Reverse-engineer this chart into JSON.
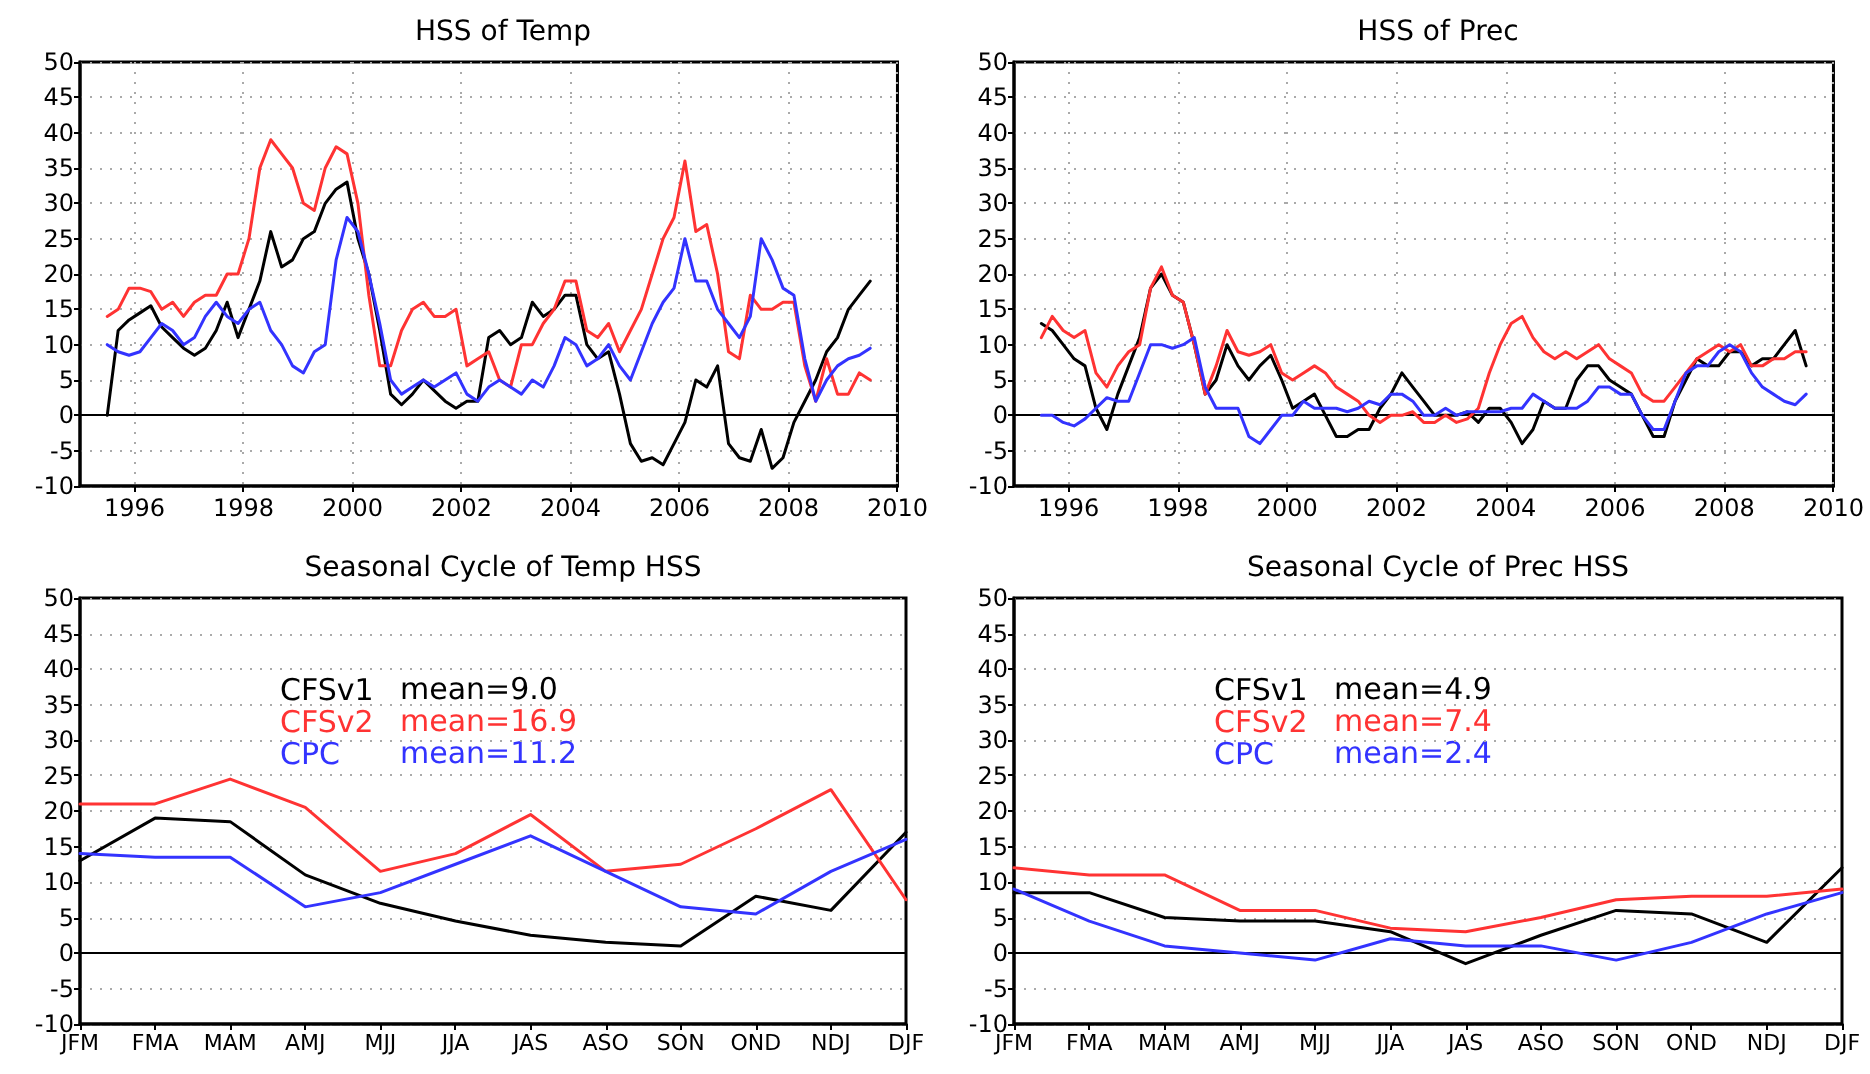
{
  "chart_data": [
    {
      "type": "line",
      "title": "HSS of Temp",
      "xlim": [
        1995,
        2010
      ],
      "xticks": [
        1996,
        1998,
        2000,
        2002,
        2004,
        2006,
        2008,
        2010
      ],
      "ylim": [
        -10,
        50
      ],
      "yticks": [
        -10,
        -5,
        0,
        5,
        10,
        15,
        20,
        25,
        30,
        35,
        40,
        45,
        50
      ],
      "grid": true,
      "ref_lines": [
        {
          "axis": "y",
          "value": 0,
          "color": "#000000",
          "line_style": "solid"
        }
      ],
      "x": [
        1995.5,
        1995.7,
        1995.9,
        1996.1,
        1996.3,
        1996.5,
        1996.7,
        1996.9,
        1997.1,
        1997.3,
        1997.5,
        1997.7,
        1997.9,
        1998.1,
        1998.3,
        1998.5,
        1998.7,
        1998.9,
        1999.1,
        1999.3,
        1999.5,
        1999.7,
        1999.9,
        2000.1,
        2000.3,
        2000.5,
        2000.7,
        2000.9,
        2001.1,
        2001.3,
        2001.5,
        2001.7,
        2001.9,
        2002.1,
        2002.3,
        2002.5,
        2002.7,
        2002.9,
        2003.1,
        2003.3,
        2003.5,
        2003.7,
        2003.9,
        2004.1,
        2004.3,
        2004.5,
        2004.7,
        2004.9,
        2005.1,
        2005.3,
        2005.5,
        2005.7,
        2005.9,
        2006.1,
        2006.3,
        2006.5,
        2006.7,
        2006.9,
        2007.1,
        2007.3,
        2007.5,
        2007.7,
        2007.9,
        2008.1,
        2008.3,
        2008.5,
        2008.7,
        2008.9,
        2009.1,
        2009.3,
        2009.5
      ],
      "series": [
        {
          "color": "#000000",
          "values": [
            0,
            12,
            13.5,
            14.5,
            15.5,
            12.5,
            11,
            9.5,
            8.5,
            9.5,
            12,
            16,
            11,
            15,
            19,
            26,
            21,
            22,
            25,
            26,
            30,
            32,
            33,
            25,
            20,
            12,
            3,
            1.5,
            3,
            5,
            3.5,
            2,
            1,
            2,
            2,
            11,
            12,
            10,
            11,
            16,
            14,
            15,
            17,
            17,
            10,
            8,
            9,
            3,
            -4,
            -6.5,
            -6,
            -7,
            -4,
            -1,
            5,
            4,
            7,
            -4,
            -6,
            -6.5,
            -2,
            -7.5,
            -6,
            -1,
            2,
            5,
            9,
            11,
            15,
            17,
            19
          ]
        },
        {
          "color": "#ff3333",
          "values": [
            14,
            15,
            18,
            18,
            17.5,
            15,
            16,
            14,
            16,
            17,
            17,
            20,
            20,
            25,
            35,
            39,
            37,
            35,
            30,
            29,
            35,
            38,
            37,
            30,
            17,
            7,
            7,
            12,
            15,
            16,
            14,
            14,
            15,
            7,
            8,
            9,
            5,
            4,
            10,
            10,
            13,
            15,
            19,
            19,
            12,
            11,
            13,
            9,
            12,
            15,
            20,
            25,
            28,
            36,
            26,
            27,
            20,
            9,
            8,
            17,
            15,
            15,
            16,
            16,
            7,
            2,
            8,
            3,
            3,
            6,
            5
          ]
        },
        {
          "color": "#3333ff",
          "values": [
            10,
            9,
            8.5,
            9,
            11,
            13,
            12,
            10,
            11,
            14,
            16,
            14,
            13,
            15,
            16,
            12,
            10,
            7,
            6,
            9,
            10,
            22,
            28,
            26,
            20,
            13,
            5,
            3,
            4,
            5,
            4,
            5,
            6,
            3,
            2,
            4,
            5,
            4,
            3,
            5,
            4,
            7,
            11,
            10,
            7,
            8,
            10,
            7,
            5,
            9,
            13,
            16,
            18,
            25,
            19,
            19,
            15,
            13,
            11,
            14,
            25,
            22,
            18,
            17,
            8,
            2,
            5,
            7,
            8,
            8.5,
            9.5
          ]
        }
      ]
    },
    {
      "type": "line",
      "title": "HSS of Prec",
      "xlim": [
        1995,
        2010
      ],
      "xticks": [
        1996,
        1998,
        2000,
        2002,
        2004,
        2006,
        2008,
        2010
      ],
      "ylim": [
        -10,
        50
      ],
      "yticks": [
        -10,
        -5,
        0,
        5,
        10,
        15,
        20,
        25,
        30,
        35,
        40,
        45,
        50
      ],
      "grid": true,
      "ref_lines": [
        {
          "axis": "y",
          "value": 0,
          "color": "#000000",
          "line_style": "solid"
        }
      ],
      "x": [
        1995.5,
        1995.7,
        1995.9,
        1996.1,
        1996.3,
        1996.5,
        1996.7,
        1996.9,
        1997.1,
        1997.3,
        1997.5,
        1997.7,
        1997.9,
        1998.1,
        1998.3,
        1998.5,
        1998.7,
        1998.9,
        1999.1,
        1999.3,
        1999.5,
        1999.7,
        1999.9,
        2000.1,
        2000.3,
        2000.5,
        2000.7,
        2000.9,
        2001.1,
        2001.3,
        2001.5,
        2001.7,
        2001.9,
        2002.1,
        2002.3,
        2002.5,
        2002.7,
        2002.9,
        2003.1,
        2003.3,
        2003.5,
        2003.7,
        2003.9,
        2004.1,
        2004.3,
        2004.5,
        2004.7,
        2004.9,
        2005.1,
        2005.3,
        2005.5,
        2005.7,
        2005.9,
        2006.1,
        2006.3,
        2006.5,
        2006.7,
        2006.9,
        2007.1,
        2007.3,
        2007.5,
        2007.7,
        2007.9,
        2008.1,
        2008.3,
        2008.5,
        2008.7,
        2008.9,
        2009.1,
        2009.3,
        2009.5
      ],
      "series": [
        {
          "color": "#000000",
          "values": [
            13,
            12,
            10,
            8,
            7,
            1,
            -2,
            3,
            7,
            11,
            18,
            20,
            17,
            16,
            10,
            3,
            5,
            10,
            7,
            5,
            7,
            8.5,
            5,
            1,
            2,
            3,
            0,
            -3,
            -3,
            -2,
            -2,
            1,
            3,
            6,
            4,
            2,
            0,
            0,
            0,
            0.5,
            -1,
            1,
            1,
            -1,
            -4,
            -2,
            2,
            1,
            1,
            5,
            7,
            7,
            5,
            4,
            3,
            0,
            -3,
            -3,
            2,
            5,
            8,
            7,
            7,
            9,
            9,
            7,
            8,
            8,
            10,
            12,
            7
          ]
        },
        {
          "color": "#ff3333",
          "values": [
            11,
            14,
            12,
            11,
            12,
            6,
            4,
            7,
            9,
            10,
            18,
            21,
            17,
            16,
            10,
            3,
            7,
            12,
            9,
            8.5,
            9,
            10,
            6,
            5,
            6,
            7,
            6,
            4,
            3,
            2,
            0,
            -1,
            0,
            0,
            0.5,
            -1,
            -1,
            0,
            -1,
            -0.5,
            1,
            6,
            10,
            13,
            14,
            11,
            9,
            8,
            9,
            8,
            9,
            10,
            8,
            7,
            6,
            3,
            2,
            2,
            4,
            6,
            8,
            9,
            10,
            9,
            10,
            7,
            7,
            8,
            8,
            9,
            9
          ]
        },
        {
          "color": "#3333ff",
          "values": [
            0,
            0,
            -1,
            -1.5,
            -0.5,
            1,
            2.5,
            2,
            2,
            6,
            10,
            10,
            9.5,
            10,
            11,
            4,
            1,
            1,
            1,
            -3,
            -4,
            -2,
            0,
            0,
            2,
            1,
            1,
            1,
            0.5,
            1,
            2,
            1.5,
            3,
            3,
            2,
            0,
            0,
            1,
            0,
            0.5,
            0.5,
            0.5,
            0.5,
            1,
            1,
            3,
            2,
            1,
            1,
            1,
            2,
            4,
            4,
            3,
            3,
            0,
            -2,
            -2,
            2,
            6,
            7,
            7,
            9,
            10,
            9,
            6,
            4,
            3,
            2,
            1.5,
            3
          ]
        }
      ]
    },
    {
      "type": "line",
      "title": "Seasonal Cycle of Temp HSS",
      "categories": [
        "JFM",
        "FMA",
        "MAM",
        "AMJ",
        "MJJ",
        "JJA",
        "JAS",
        "ASO",
        "SON",
        "OND",
        "NDJ",
        "DJF"
      ],
      "ylim": [
        -10,
        50
      ],
      "yticks": [
        -10,
        -5,
        0,
        5,
        10,
        15,
        20,
        25,
        30,
        35,
        40,
        45,
        50
      ],
      "grid": "y",
      "legend": "top left",
      "annotations": [
        "mean=9.0",
        "mean=16.9",
        "mean=11.2"
      ],
      "ref_lines": [
        {
          "axis": "y",
          "value": 0,
          "color": "#000000",
          "line_style": "solid"
        }
      ],
      "series": [
        {
          "name": "CFSv1",
          "color": "#000000",
          "values": [
            13,
            19,
            18.5,
            11,
            7,
            4.5,
            2.5,
            1.5,
            1,
            8,
            6,
            17
          ]
        },
        {
          "name": "CFSv2",
          "color": "#ff3333",
          "values": [
            21,
            21,
            24.5,
            20.5,
            11.5,
            14,
            19.5,
            11.5,
            12.5,
            17.5,
            23,
            7.5
          ]
        },
        {
          "name": "CPC",
          "color": "#3333ff",
          "values": [
            14,
            13.5,
            13.5,
            6.5,
            8.5,
            12.5,
            16.5,
            11.5,
            6.5,
            5.5,
            11.5,
            16
          ]
        }
      ]
    },
    {
      "type": "line",
      "title": "Seasonal Cycle of Prec HSS",
      "categories": [
        "JFM",
        "FMA",
        "MAM",
        "AMJ",
        "MJJ",
        "JJA",
        "JAS",
        "ASO",
        "SON",
        "OND",
        "NDJ",
        "DJF"
      ],
      "ylim": [
        -10,
        50
      ],
      "yticks": [
        -10,
        -5,
        0,
        5,
        10,
        15,
        20,
        25,
        30,
        35,
        40,
        45,
        50
      ],
      "grid": "y",
      "legend": "top left",
      "annotations": [
        "mean=4.9",
        "mean=7.4",
        "mean=2.4"
      ],
      "ref_lines": [
        {
          "axis": "y",
          "value": 0,
          "color": "#000000",
          "line_style": "solid"
        }
      ],
      "series": [
        {
          "name": "CFSv1",
          "color": "#000000",
          "values": [
            8.5,
            8.5,
            5,
            4.5,
            4.5,
            3,
            -1.5,
            2.5,
            6,
            5.5,
            1.5,
            12
          ]
        },
        {
          "name": "CFSv2",
          "color": "#ff3333",
          "values": [
            12,
            11,
            11,
            6,
            6,
            3.5,
            3,
            5,
            7.5,
            8,
            8,
            9
          ]
        },
        {
          "name": "CPC",
          "color": "#3333ff",
          "values": [
            9,
            4.5,
            1,
            0,
            -1,
            2,
            1,
            1,
            -1,
            1.5,
            5.5,
            8.5
          ]
        }
      ]
    }
  ]
}
